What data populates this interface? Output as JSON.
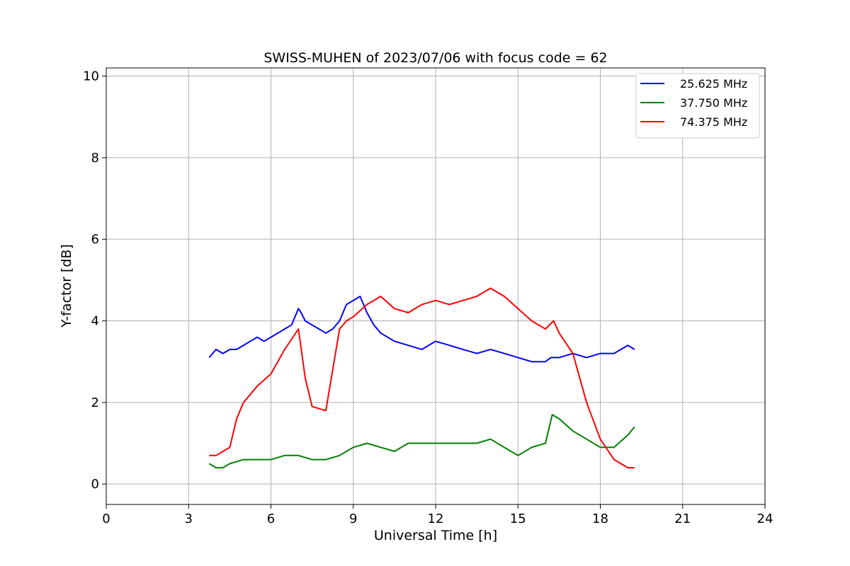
{
  "chart_data": {
    "type": "line",
    "title": "SWISS-MUHEN of 2023/07/06 with focus code = 62",
    "xlabel": "Universal Time [h]",
    "ylabel": "Y-factor [dB]",
    "xlim": [
      0,
      24
    ],
    "ylim": [
      -0.5,
      10.2
    ],
    "xticks": [
      0,
      3,
      6,
      9,
      12,
      15,
      18,
      21,
      24
    ],
    "yticks": [
      0,
      2,
      4,
      6,
      8,
      10
    ],
    "grid": true,
    "legend_position": "top-right",
    "series": [
      {
        "name": "25.625 MHz",
        "color": "#0000ff",
        "x": [
          3.75,
          4.0,
          4.25,
          4.5,
          4.75,
          5.0,
          5.25,
          5.5,
          5.75,
          6.0,
          6.25,
          6.5,
          6.75,
          7.0,
          7.1,
          7.25,
          7.5,
          7.75,
          8.0,
          8.25,
          8.5,
          8.75,
          9.0,
          9.25,
          9.5,
          9.75,
          10.0,
          10.5,
          11.0,
          11.5,
          12.0,
          12.5,
          13.0,
          13.5,
          14.0,
          14.5,
          15.0,
          15.5,
          16.0,
          16.2,
          16.5,
          17.0,
          17.5,
          18.0,
          18.5,
          18.75,
          19.0,
          19.25
        ],
        "y": [
          3.1,
          3.3,
          3.2,
          3.3,
          3.3,
          3.4,
          3.5,
          3.6,
          3.5,
          3.6,
          3.7,
          3.8,
          3.9,
          4.3,
          4.2,
          4.0,
          3.9,
          3.8,
          3.7,
          3.8,
          4.0,
          4.4,
          4.5,
          4.6,
          4.2,
          3.9,
          3.7,
          3.5,
          3.4,
          3.3,
          3.5,
          3.4,
          3.3,
          3.2,
          3.3,
          3.2,
          3.1,
          3.0,
          3.0,
          3.1,
          3.1,
          3.2,
          3.1,
          3.2,
          3.2,
          3.3,
          3.4,
          3.3
        ]
      },
      {
        "name": "37.750 MHz",
        "color": "#008000",
        "x": [
          3.75,
          4.0,
          4.25,
          4.5,
          5.0,
          5.5,
          6.0,
          6.5,
          7.0,
          7.5,
          8.0,
          8.5,
          9.0,
          9.5,
          10.0,
          10.5,
          11.0,
          11.5,
          12.0,
          12.5,
          13.0,
          13.5,
          14.0,
          14.5,
          15.0,
          15.5,
          16.0,
          16.25,
          16.5,
          17.0,
          17.5,
          18.0,
          18.5,
          19.0,
          19.25
        ],
        "y": [
          0.5,
          0.4,
          0.4,
          0.5,
          0.6,
          0.6,
          0.6,
          0.7,
          0.7,
          0.6,
          0.6,
          0.7,
          0.9,
          1.0,
          0.9,
          0.8,
          1.0,
          1.0,
          1.0,
          1.0,
          1.0,
          1.0,
          1.1,
          0.9,
          0.7,
          0.9,
          1.0,
          1.7,
          1.6,
          1.3,
          1.1,
          0.9,
          0.9,
          1.2,
          1.4
        ]
      },
      {
        "name": "74.375 MHz",
        "color": "#ff0000",
        "x": [
          3.75,
          4.0,
          4.25,
          4.5,
          4.75,
          5.0,
          5.5,
          6.0,
          6.5,
          7.0,
          7.25,
          7.5,
          8.0,
          8.5,
          8.75,
          9.0,
          9.5,
          10.0,
          10.5,
          11.0,
          11.5,
          12.0,
          12.5,
          13.0,
          13.5,
          14.0,
          14.5,
          15.0,
          15.5,
          16.0,
          16.3,
          16.5,
          17.0,
          17.5,
          18.0,
          18.5,
          19.0,
          19.25
        ],
        "y": [
          0.7,
          0.7,
          0.8,
          0.9,
          1.6,
          2.0,
          2.4,
          2.7,
          3.3,
          3.8,
          2.6,
          1.9,
          1.8,
          3.8,
          4.0,
          4.1,
          4.4,
          4.6,
          4.3,
          4.2,
          4.4,
          4.5,
          4.4,
          4.5,
          4.6,
          4.8,
          4.6,
          4.3,
          4.0,
          3.8,
          4.0,
          3.7,
          3.2,
          2.0,
          1.1,
          0.6,
          0.4,
          0.4
        ]
      }
    ]
  }
}
